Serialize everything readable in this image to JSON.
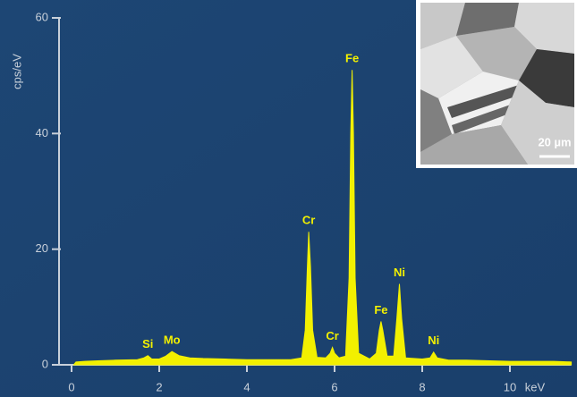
{
  "chart_data": {
    "type": "area",
    "x_label": "keV",
    "y_label": "cps/eV",
    "color": "#f2f000",
    "xlim": [
      -0.3,
      11.4
    ],
    "ylim": [
      0,
      60
    ],
    "xticks": [
      0,
      2,
      4,
      6,
      8,
      10
    ],
    "yticks": [
      0,
      20,
      40,
      60
    ],
    "x": [
      0.05,
      0.1,
      0.3,
      0.6,
      1.0,
      1.5,
      1.65,
      1.74,
      1.83,
      2.0,
      2.15,
      2.29,
      2.45,
      2.7,
      3.0,
      3.5,
      4.0,
      4.5,
      5.0,
      5.25,
      5.33,
      5.38,
      5.41,
      5.45,
      5.5,
      5.6,
      5.8,
      5.9,
      5.95,
      6.0,
      6.1,
      6.25,
      6.33,
      6.37,
      6.4,
      6.43,
      6.47,
      6.55,
      6.8,
      6.95,
      7.02,
      7.06,
      7.1,
      7.2,
      7.35,
      7.42,
      7.48,
      7.53,
      7.62,
      8.0,
      8.18,
      8.26,
      8.34,
      8.6,
      9.0,
      10.0,
      11.0,
      11.4
    ],
    "values": [
      0,
      0.5,
      0.6,
      0.7,
      0.8,
      0.9,
      1.2,
      1.6,
      1.0,
      1.0,
      1.5,
      2.3,
      1.6,
      1.2,
      1.1,
      1.0,
      0.9,
      0.9,
      0.9,
      1.2,
      6,
      17,
      23,
      17,
      6,
      1.3,
      1.2,
      2,
      3,
      2,
      1.2,
      1.5,
      15,
      40,
      51,
      40,
      15,
      2,
      1,
      2,
      6,
      7.5,
      6,
      1.5,
      1.5,
      8,
      14,
      8,
      1.2,
      1,
      1.2,
      2.2,
      1.2,
      0.8,
      0.8,
      0.6,
      0.6,
      0.5
    ],
    "annotations": [
      {
        "text": "Si",
        "x": 1.74,
        "y": 1.6
      },
      {
        "text": "Mo",
        "x": 2.29,
        "y": 2.3
      },
      {
        "text": "Cr",
        "x": 5.41,
        "y": 23
      },
      {
        "text": "Cr",
        "x": 5.95,
        "y": 3
      },
      {
        "text": "Fe",
        "x": 6.4,
        "y": 51
      },
      {
        "text": "Fe",
        "x": 7.06,
        "y": 7.5
      },
      {
        "text": "Ni",
        "x": 7.48,
        "y": 14
      },
      {
        "text": "Ni",
        "x": 8.26,
        "y": 2.2
      }
    ],
    "inset_label": "20 µm"
  }
}
